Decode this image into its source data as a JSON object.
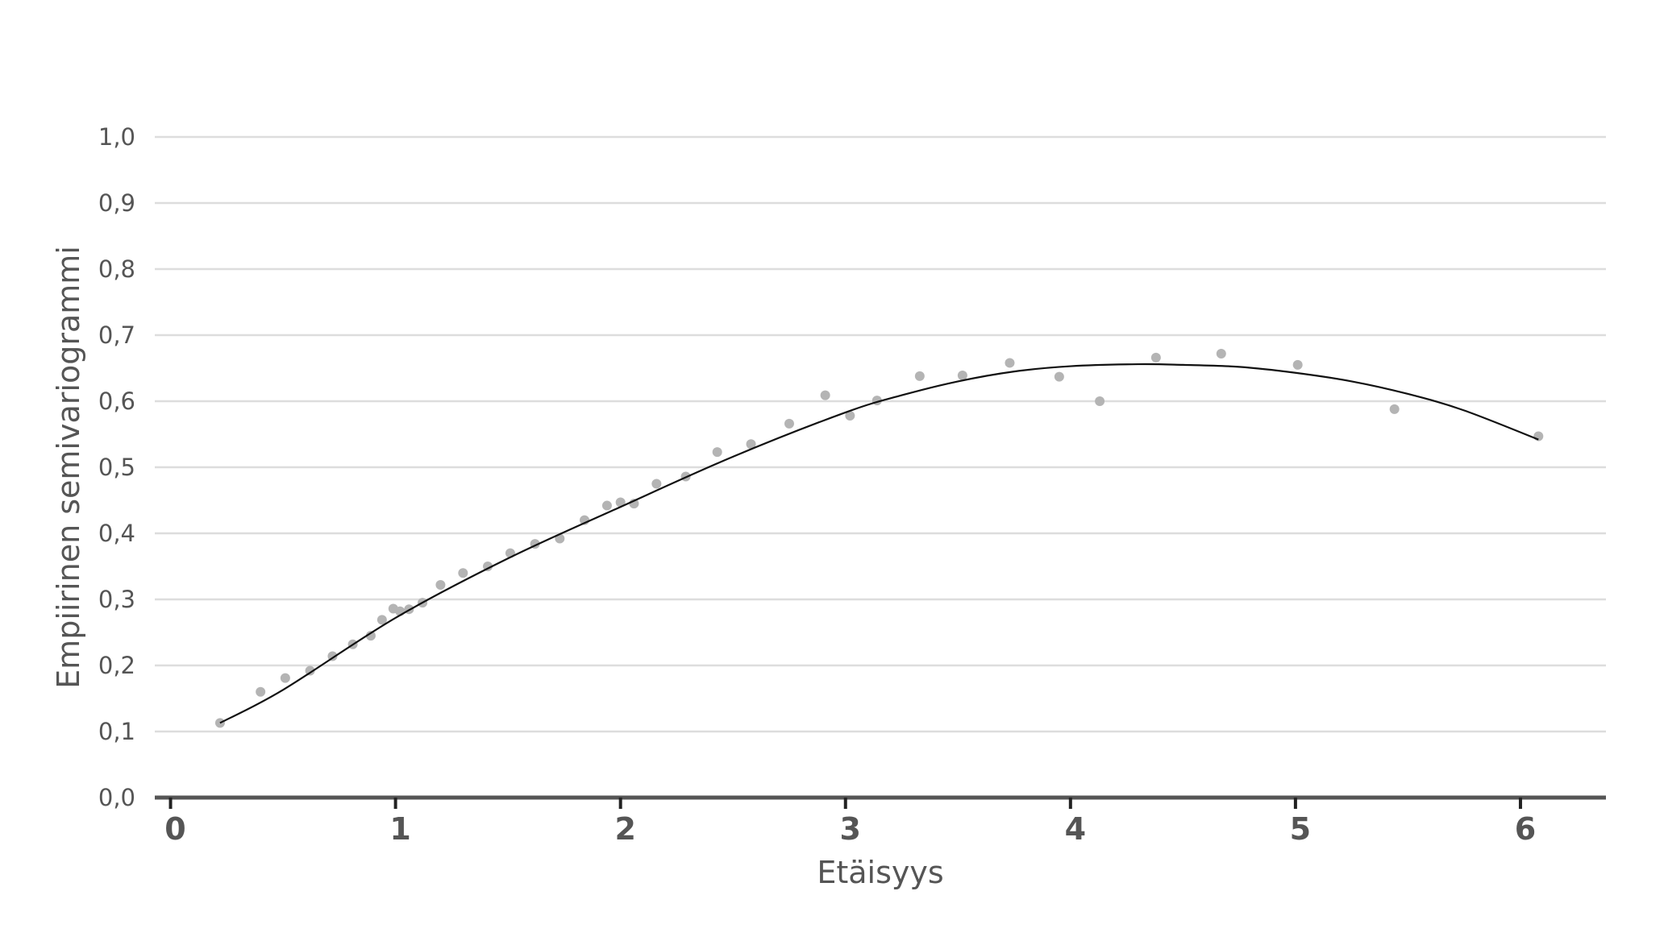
{
  "chart_data": {
    "type": "scatter",
    "title": "",
    "xlabel": "Etäisyys",
    "ylabel": "Empiirinen semivariogrammi",
    "xlim": [
      -0.07,
      6.38
    ],
    "ylim": [
      0.0,
      1.0
    ],
    "x_ticks": [
      0,
      1,
      2,
      3,
      4,
      5,
      6
    ],
    "x_tick_labels": [
      "0",
      "1",
      "2",
      "3",
      "4",
      "5",
      "6"
    ],
    "y_ticks": [
      0.0,
      0.1,
      0.2,
      0.3,
      0.4,
      0.5,
      0.6,
      0.7,
      0.8,
      0.9,
      1.0
    ],
    "y_tick_labels": [
      "0,0",
      "0,1",
      "0,2",
      "0,3",
      "0,4",
      "0,5",
      "0,6",
      "0,7",
      "0,8",
      "0,9",
      "1,0"
    ],
    "grid": "horizontal",
    "point_color": "#b4b4b4",
    "line_color": "#111111",
    "grid_color": "#dddddd",
    "axis_color": "#555555",
    "series": [
      {
        "type": "scatter",
        "x": [
          0.22,
          0.4,
          0.51,
          0.62,
          0.72,
          0.81,
          0.89,
          0.94,
          0.99,
          1.02,
          1.06,
          1.12,
          1.2,
          1.3,
          1.41,
          1.51,
          1.62,
          1.73,
          1.84,
          1.94,
          2.0,
          2.06,
          2.16,
          2.29,
          2.43,
          2.58,
          2.75,
          2.91,
          3.02,
          3.14,
          3.33,
          3.52,
          3.73,
          3.95,
          4.13,
          4.38,
          4.67,
          5.01,
          5.44,
          6.08
        ],
        "y": [
          0.113,
          0.16,
          0.181,
          0.192,
          0.214,
          0.232,
          0.245,
          0.269,
          0.286,
          0.282,
          0.285,
          0.295,
          0.322,
          0.34,
          0.35,
          0.37,
          0.384,
          0.392,
          0.42,
          0.442,
          0.447,
          0.445,
          0.475,
          0.486,
          0.523,
          0.535,
          0.566,
          0.609,
          0.578,
          0.601,
          0.638,
          0.639,
          0.658,
          0.637,
          0.6,
          0.666,
          0.672,
          0.655,
          0.588,
          0.547
        ]
      },
      {
        "type": "line",
        "x": [
          0.22,
          0.5,
          1.0,
          1.5,
          2.0,
          2.5,
          3.0,
          3.25,
          3.5,
          3.75,
          4.0,
          4.3,
          4.5,
          4.75,
          5.0,
          5.25,
          5.5,
          5.75,
          6.08
        ],
        "y": [
          0.113,
          0.163,
          0.272,
          0.362,
          0.44,
          0.516,
          0.583,
          0.609,
          0.63,
          0.645,
          0.653,
          0.656,
          0.655,
          0.652,
          0.643,
          0.63,
          0.611,
          0.586,
          0.542
        ]
      }
    ]
  }
}
